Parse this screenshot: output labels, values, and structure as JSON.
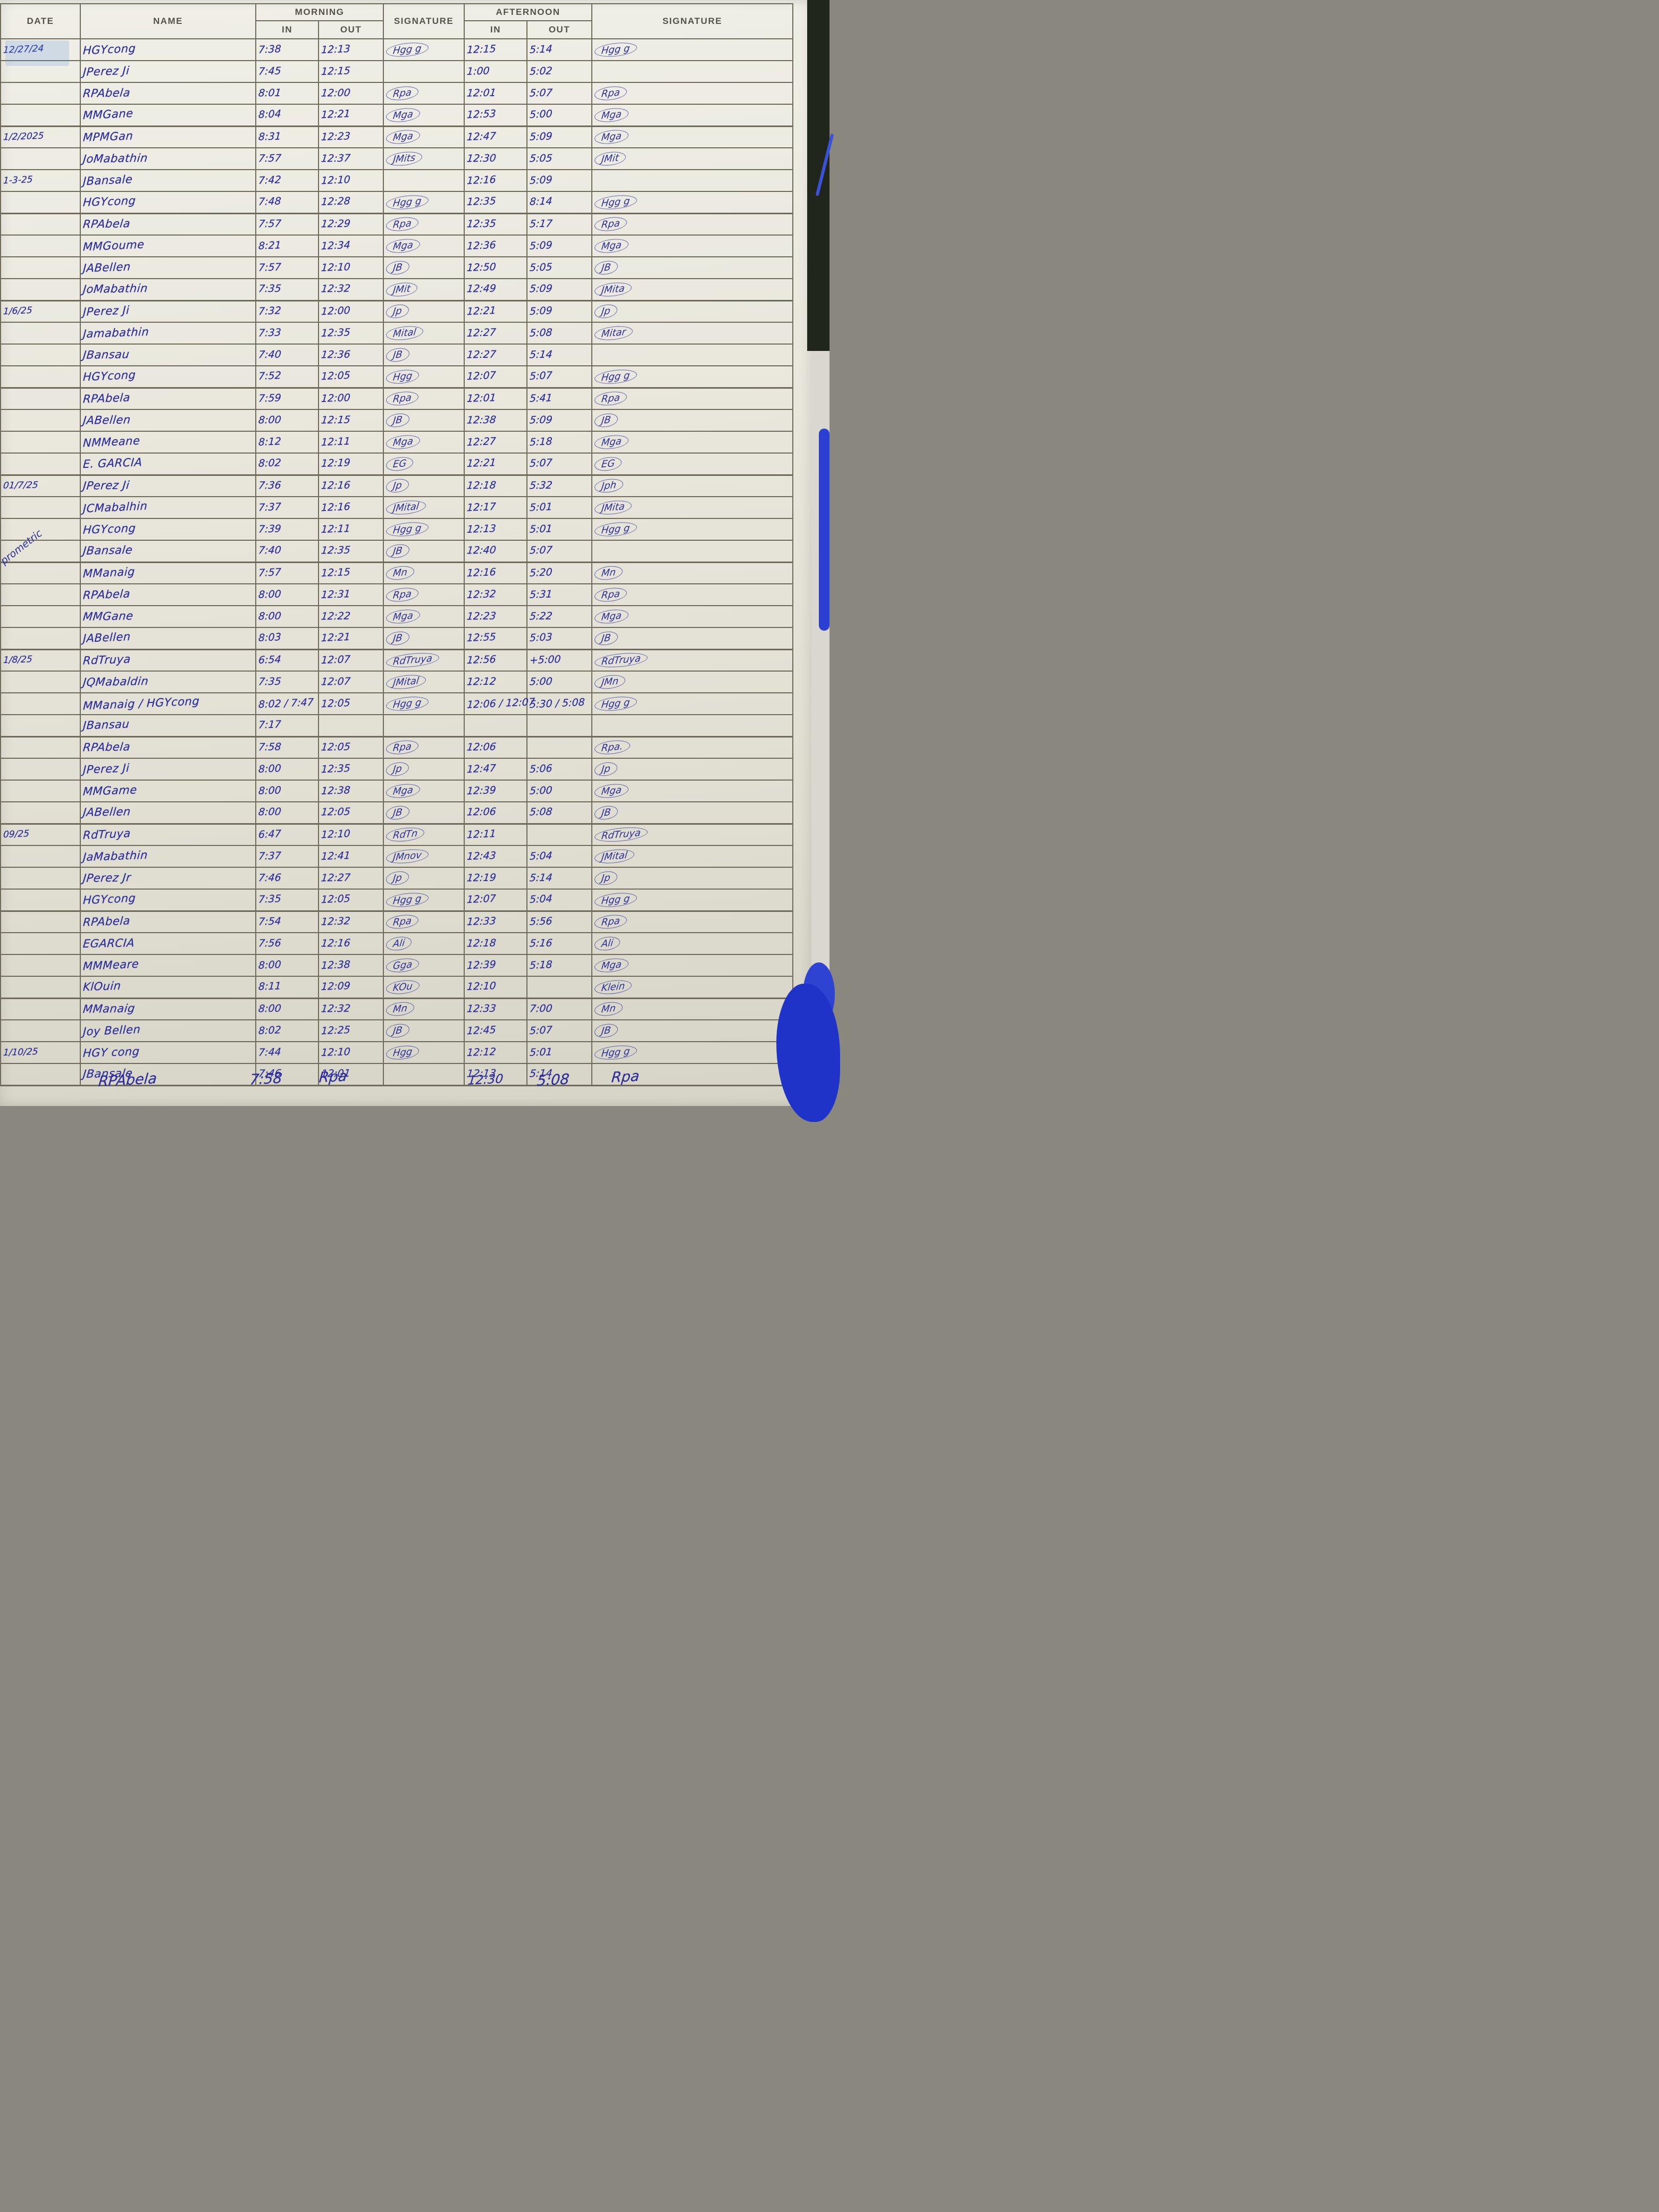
{
  "header": {
    "date": "DATE",
    "name": "NAME",
    "morning": "MORNING",
    "afternoon": "AFTERNOON",
    "in": "IN",
    "out": "OUT",
    "signature": "SIGNATURE"
  },
  "margin_note": "prometric",
  "ink_color": "#2d2d9d",
  "rows": [
    {
      "date": "12/27/24",
      "name": "HGYcong",
      "m_in": "7:38",
      "m_out": "12:13",
      "m_sig": "Hgg g",
      "a_in": "12:15",
      "a_out": "5:14",
      "a_sig": "Hgg g"
    },
    {
      "date": "",
      "name": "JPerez Ji",
      "m_in": "7:45",
      "m_out": "12:15",
      "m_sig": "",
      "a_in": "1:00",
      "a_out": "5:02",
      "a_sig": ""
    },
    {
      "date": "",
      "name": "RPAbela",
      "m_in": "8:01",
      "m_out": "12:00",
      "m_sig": "Rpa",
      "a_in": "12:01",
      "a_out": "5:07",
      "a_sig": "Rpa"
    },
    {
      "date": "",
      "name": "MMGane",
      "m_in": "8:04",
      "m_out": "12:21",
      "m_sig": "Mga",
      "a_in": "12:53",
      "a_out": "5:00",
      "a_sig": "Mga"
    },
    {
      "date": "1/2/2025",
      "name": "MPMGan",
      "m_in": "8:31",
      "m_out": "12:23",
      "m_sig": "Mga",
      "a_in": "12:47",
      "a_out": "5:09",
      "a_sig": "Mga"
    },
    {
      "date": "",
      "name": "JoMabathin",
      "m_in": "7:57",
      "m_out": "12:37",
      "m_sig": "JMits",
      "a_in": "12:30",
      "a_out": "5:05",
      "a_sig": "JMit"
    },
    {
      "date": "1-3-25",
      "name": "JBansale",
      "m_in": "7:42",
      "m_out": "12:10",
      "m_sig": "",
      "a_in": "12:16",
      "a_out": "5:09",
      "a_sig": ""
    },
    {
      "date": "",
      "name": "HGYcong",
      "m_in": "7:48",
      "m_out": "12:28",
      "m_sig": "Hgg g",
      "a_in": "12:35",
      "a_out": "8:14",
      "a_sig": "Hgg g"
    },
    {
      "date": "",
      "name": "RPAbela",
      "m_in": "7:57",
      "m_out": "12:29",
      "m_sig": "Rpa",
      "a_in": "12:35",
      "a_out": "5:17",
      "a_sig": "Rpa"
    },
    {
      "date": "",
      "name": "MMGoume",
      "m_in": "8:21",
      "m_out": "12:34",
      "m_sig": "Mga",
      "a_in": "12:36",
      "a_out": "5:09",
      "a_sig": "Mga"
    },
    {
      "date": "",
      "name": "JABellen",
      "m_in": "7:57",
      "m_out": "12:10",
      "m_sig": "JB",
      "a_in": "12:50",
      "a_out": "5:05",
      "a_sig": "JB"
    },
    {
      "date": "",
      "name": "JoMabathin",
      "m_in": "7:35",
      "m_out": "12:32",
      "m_sig": "JMit",
      "a_in": "12:49",
      "a_out": "5:09",
      "a_sig": "JMita"
    },
    {
      "date": "1/6/25",
      "name": "JPerez Ji",
      "m_in": "7:32",
      "m_out": "12:00",
      "m_sig": "Jp",
      "a_in": "12:21",
      "a_out": "5:09",
      "a_sig": "Jp"
    },
    {
      "date": "",
      "name": "Jamabathin",
      "m_in": "7:33",
      "m_out": "12:35",
      "m_sig": "Mital",
      "a_in": "12:27",
      "a_out": "5:08",
      "a_sig": "Mitar"
    },
    {
      "date": "",
      "name": "JBansau",
      "m_in": "7:40",
      "m_out": "12:36",
      "m_sig": "JB",
      "a_in": "12:27",
      "a_out": "5:14",
      "a_sig": ""
    },
    {
      "date": "",
      "name": "HGYcong",
      "m_in": "7:52",
      "m_out": "12:05",
      "m_sig": "Hgg",
      "a_in": "12:07",
      "a_out": "5:07",
      "a_sig": "Hgg g"
    },
    {
      "date": "",
      "name": "RPAbela",
      "m_in": "7:59",
      "m_out": "12:00",
      "m_sig": "Rpa",
      "a_in": "12:01",
      "a_out": "5:41",
      "a_sig": "Rpa"
    },
    {
      "date": "",
      "name": "JABellen",
      "m_in": "8:00",
      "m_out": "12:15",
      "m_sig": "JB",
      "a_in": "12:38",
      "a_out": "5:09",
      "a_sig": "JB"
    },
    {
      "date": "",
      "name": "NMMeane",
      "m_in": "8:12",
      "m_out": "12:11",
      "m_sig": "Mga",
      "a_in": "12:27",
      "a_out": "5:18",
      "a_sig": "Mga"
    },
    {
      "date": "",
      "name": "E. GARCIA",
      "m_in": "8:02",
      "m_out": "12:19",
      "m_sig": "EG",
      "a_in": "12:21",
      "a_out": "5:07",
      "a_sig": "EG"
    },
    {
      "date": "01/7/25",
      "name": "JPerez Ji",
      "m_in": "7:36",
      "m_out": "12:16",
      "m_sig": "Jp",
      "a_in": "12:18",
      "a_out": "5:32",
      "a_sig": "Jph"
    },
    {
      "date": "",
      "name": "JCMabalhin",
      "m_in": "7:37",
      "m_out": "12:16",
      "m_sig": "JMital",
      "a_in": "12:17",
      "a_out": "5:01",
      "a_sig": "JMita"
    },
    {
      "date": "",
      "name": "HGYcong",
      "m_in": "7:39",
      "m_out": "12:11",
      "m_sig": "Hgg g",
      "a_in": "12:13",
      "a_out": "5:01",
      "a_sig": "Hgg g"
    },
    {
      "date": "",
      "name": "JBansale",
      "m_in": "7:40",
      "m_out": "12:35",
      "m_sig": "JB",
      "a_in": "12:40",
      "a_out": "5:07",
      "a_sig": ""
    },
    {
      "date": "",
      "name": "MManaig",
      "m_in": "7:57",
      "m_out": "12:15",
      "m_sig": "Mn",
      "a_in": "12:16",
      "a_out": "5:20",
      "a_sig": "Mn"
    },
    {
      "date": "",
      "name": "RPAbela",
      "m_in": "8:00",
      "m_out": "12:31",
      "m_sig": "Rpa",
      "a_in": "12:32",
      "a_out": "5:31",
      "a_sig": "Rpa"
    },
    {
      "date": "",
      "name": "MMGane",
      "m_in": "8:00",
      "m_out": "12:22",
      "m_sig": "Mga",
      "a_in": "12:23",
      "a_out": "5:22",
      "a_sig": "Mga"
    },
    {
      "date": "",
      "name": "JABellen",
      "m_in": "8:03",
      "m_out": "12:21",
      "m_sig": "JB",
      "a_in": "12:55",
      "a_out": "5:03",
      "a_sig": "JB"
    },
    {
      "date": "1/8/25",
      "name": "RdTruya",
      "m_in": "6:54",
      "m_out": "12:07",
      "m_sig": "RdTruya",
      "a_in": "12:56",
      "a_out": "+5:00",
      "a_sig": "RdTruya"
    },
    {
      "date": "",
      "name": "JQMabaldin",
      "m_in": "7:35",
      "m_out": "12:07",
      "m_sig": "JMital",
      "a_in": "12:12",
      "a_out": "5:00",
      "a_sig": "JMn"
    },
    {
      "date": "",
      "name": "MManaig / HGYcong",
      "m_in": "8:02 / 7:47",
      "m_out": "12:05",
      "m_sig": "Hgg g",
      "a_in": "12:06 / 12:07",
      "a_out": "5:30 / 5:08",
      "a_sig": "Hgg g"
    },
    {
      "date": "",
      "name": "JBansau",
      "m_in": "7:17",
      "m_out": "",
      "m_sig": "",
      "a_in": "",
      "a_out": "",
      "a_sig": ""
    },
    {
      "date": "",
      "name": "RPAbela",
      "m_in": "7:58",
      "m_out": "12:05",
      "m_sig": "Rpa",
      "a_in": "12:06",
      "a_out": "",
      "a_sig": "Rpa."
    },
    {
      "date": "",
      "name": "JPerez Ji",
      "m_in": "8:00",
      "m_out": "12:35",
      "m_sig": "Jp",
      "a_in": "12:47",
      "a_out": "5:06",
      "a_sig": "Jp"
    },
    {
      "date": "",
      "name": "MMGame",
      "m_in": "8:00",
      "m_out": "12:38",
      "m_sig": "Mga",
      "a_in": "12:39",
      "a_out": "5:00",
      "a_sig": "Mga"
    },
    {
      "date": "",
      "name": "JABellen",
      "m_in": "8:00",
      "m_out": "12:05",
      "m_sig": "JB",
      "a_in": "12:06",
      "a_out": "5:08",
      "a_sig": "JB"
    },
    {
      "date": "09/25",
      "name": "RdTruya",
      "m_in": "6:47",
      "m_out": "12:10",
      "m_sig": "RdTn",
      "a_in": "12:11",
      "a_out": "",
      "a_sig": "RdTruya"
    },
    {
      "date": "",
      "name": "JaMabathin",
      "m_in": "7:37",
      "m_out": "12:41",
      "m_sig": "JMnov",
      "a_in": "12:43",
      "a_out": "5:04",
      "a_sig": "JMital"
    },
    {
      "date": "",
      "name": "JPerez Jr",
      "m_in": "7:46",
      "m_out": "12:27",
      "m_sig": "Jp",
      "a_in": "12:19",
      "a_out": "5:14",
      "a_sig": "Jp"
    },
    {
      "date": "",
      "name": "HGYcong",
      "m_in": "7:35",
      "m_out": "12:05",
      "m_sig": "Hgg g",
      "a_in": "12:07",
      "a_out": "5:04",
      "a_sig": "Hgg g"
    },
    {
      "date": "",
      "name": "RPAbela",
      "m_in": "7:54",
      "m_out": "12:32",
      "m_sig": "Rpa",
      "a_in": "12:33",
      "a_out": "5:56",
      "a_sig": "Rpa"
    },
    {
      "date": "",
      "name": "EGARCIA",
      "m_in": "7:56",
      "m_out": "12:16",
      "m_sig": "Ali",
      "a_in": "12:18",
      "a_out": "5:16",
      "a_sig": "Ali"
    },
    {
      "date": "",
      "name": "MMMeare",
      "m_in": "8:00",
      "m_out": "12:38",
      "m_sig": "Gga",
      "a_in": "12:39",
      "a_out": "5:18",
      "a_sig": "Mga"
    },
    {
      "date": "",
      "name": "KlOuin",
      "m_in": "8:11",
      "m_out": "12:09",
      "m_sig": "KOu",
      "a_in": "12:10",
      "a_out": "",
      "a_sig": "Klein"
    },
    {
      "date": "",
      "name": "MManaig",
      "m_in": "8:00",
      "m_out": "12:32",
      "m_sig": "Mn",
      "a_in": "12:33",
      "a_out": "7:00",
      "a_sig": "Mn"
    },
    {
      "date": "",
      "name": "Joy Bellen",
      "m_in": "8:02",
      "m_out": "12:25",
      "m_sig": "JB",
      "a_in": "12:45",
      "a_out": "5:07",
      "a_sig": "JB"
    },
    {
      "date": "1/10/25",
      "name": "HGY cong",
      "m_in": "7:44",
      "m_out": "12:10",
      "m_sig": "Hgg",
      "a_in": "12:12",
      "a_out": "5:01",
      "a_sig": "Hgg g"
    },
    {
      "date": "",
      "name": "JBansale",
      "m_in": "7:46",
      "m_out": "12:01",
      "m_sig": "",
      "a_in": "12:13",
      "a_out": "5:14",
      "a_sig": ""
    }
  ],
  "footer_row": {
    "name": "RPAbela",
    "m_in": "7:58",
    "m_sig": "Rpa",
    "a_in": "12:30",
    "a_out": "5:08",
    "a_sig": "Rpa"
  }
}
